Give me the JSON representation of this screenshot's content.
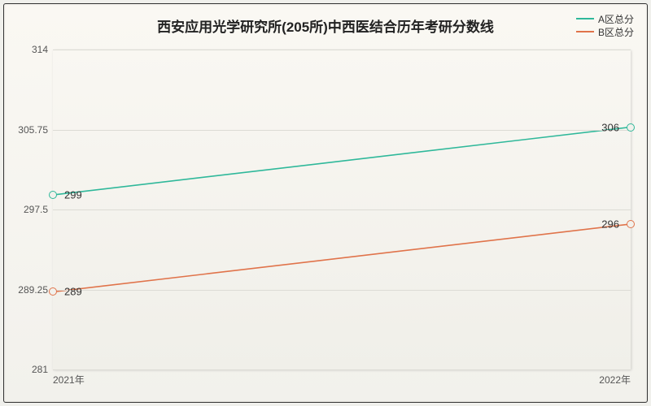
{
  "title": "西安应用光学研究所(205所)中西医结合历年考研分数线",
  "title_fontsize": 17,
  "legend": {
    "series": [
      {
        "label": "A区总分",
        "color": "#2fb89a"
      },
      {
        "label": "B区总分",
        "color": "#e0734a"
      }
    ]
  },
  "chart": {
    "type": "line",
    "background_gradient": [
      "#faf8f3",
      "#f0efe9"
    ],
    "border_color": "#333333",
    "grid_color": "#dcdbd5",
    "x_categories": [
      "2021年",
      "2022年"
    ],
    "ylim": [
      281,
      314
    ],
    "yticks": [
      281,
      289.25,
      297.5,
      305.75,
      314
    ],
    "ytick_labels": [
      "281",
      "289.25",
      "297.5",
      "305.75",
      "314"
    ],
    "line_width": 1.6,
    "endpoint_marker": {
      "radius": 5,
      "fill": "#f2f1ec",
      "stroke_width": 1.6
    },
    "series": [
      {
        "name": "A区总分",
        "color": "#2fb89a",
        "values": [
          299,
          306
        ],
        "labels": [
          "299",
          "306"
        ]
      },
      {
        "name": "B区总分",
        "color": "#e0734a",
        "values": [
          289,
          296
        ],
        "labels": [
          "289",
          "296"
        ]
      }
    ],
    "label_fontsize": 13,
    "axis_label_fontsize": 12,
    "axis_label_color": "#555555"
  }
}
